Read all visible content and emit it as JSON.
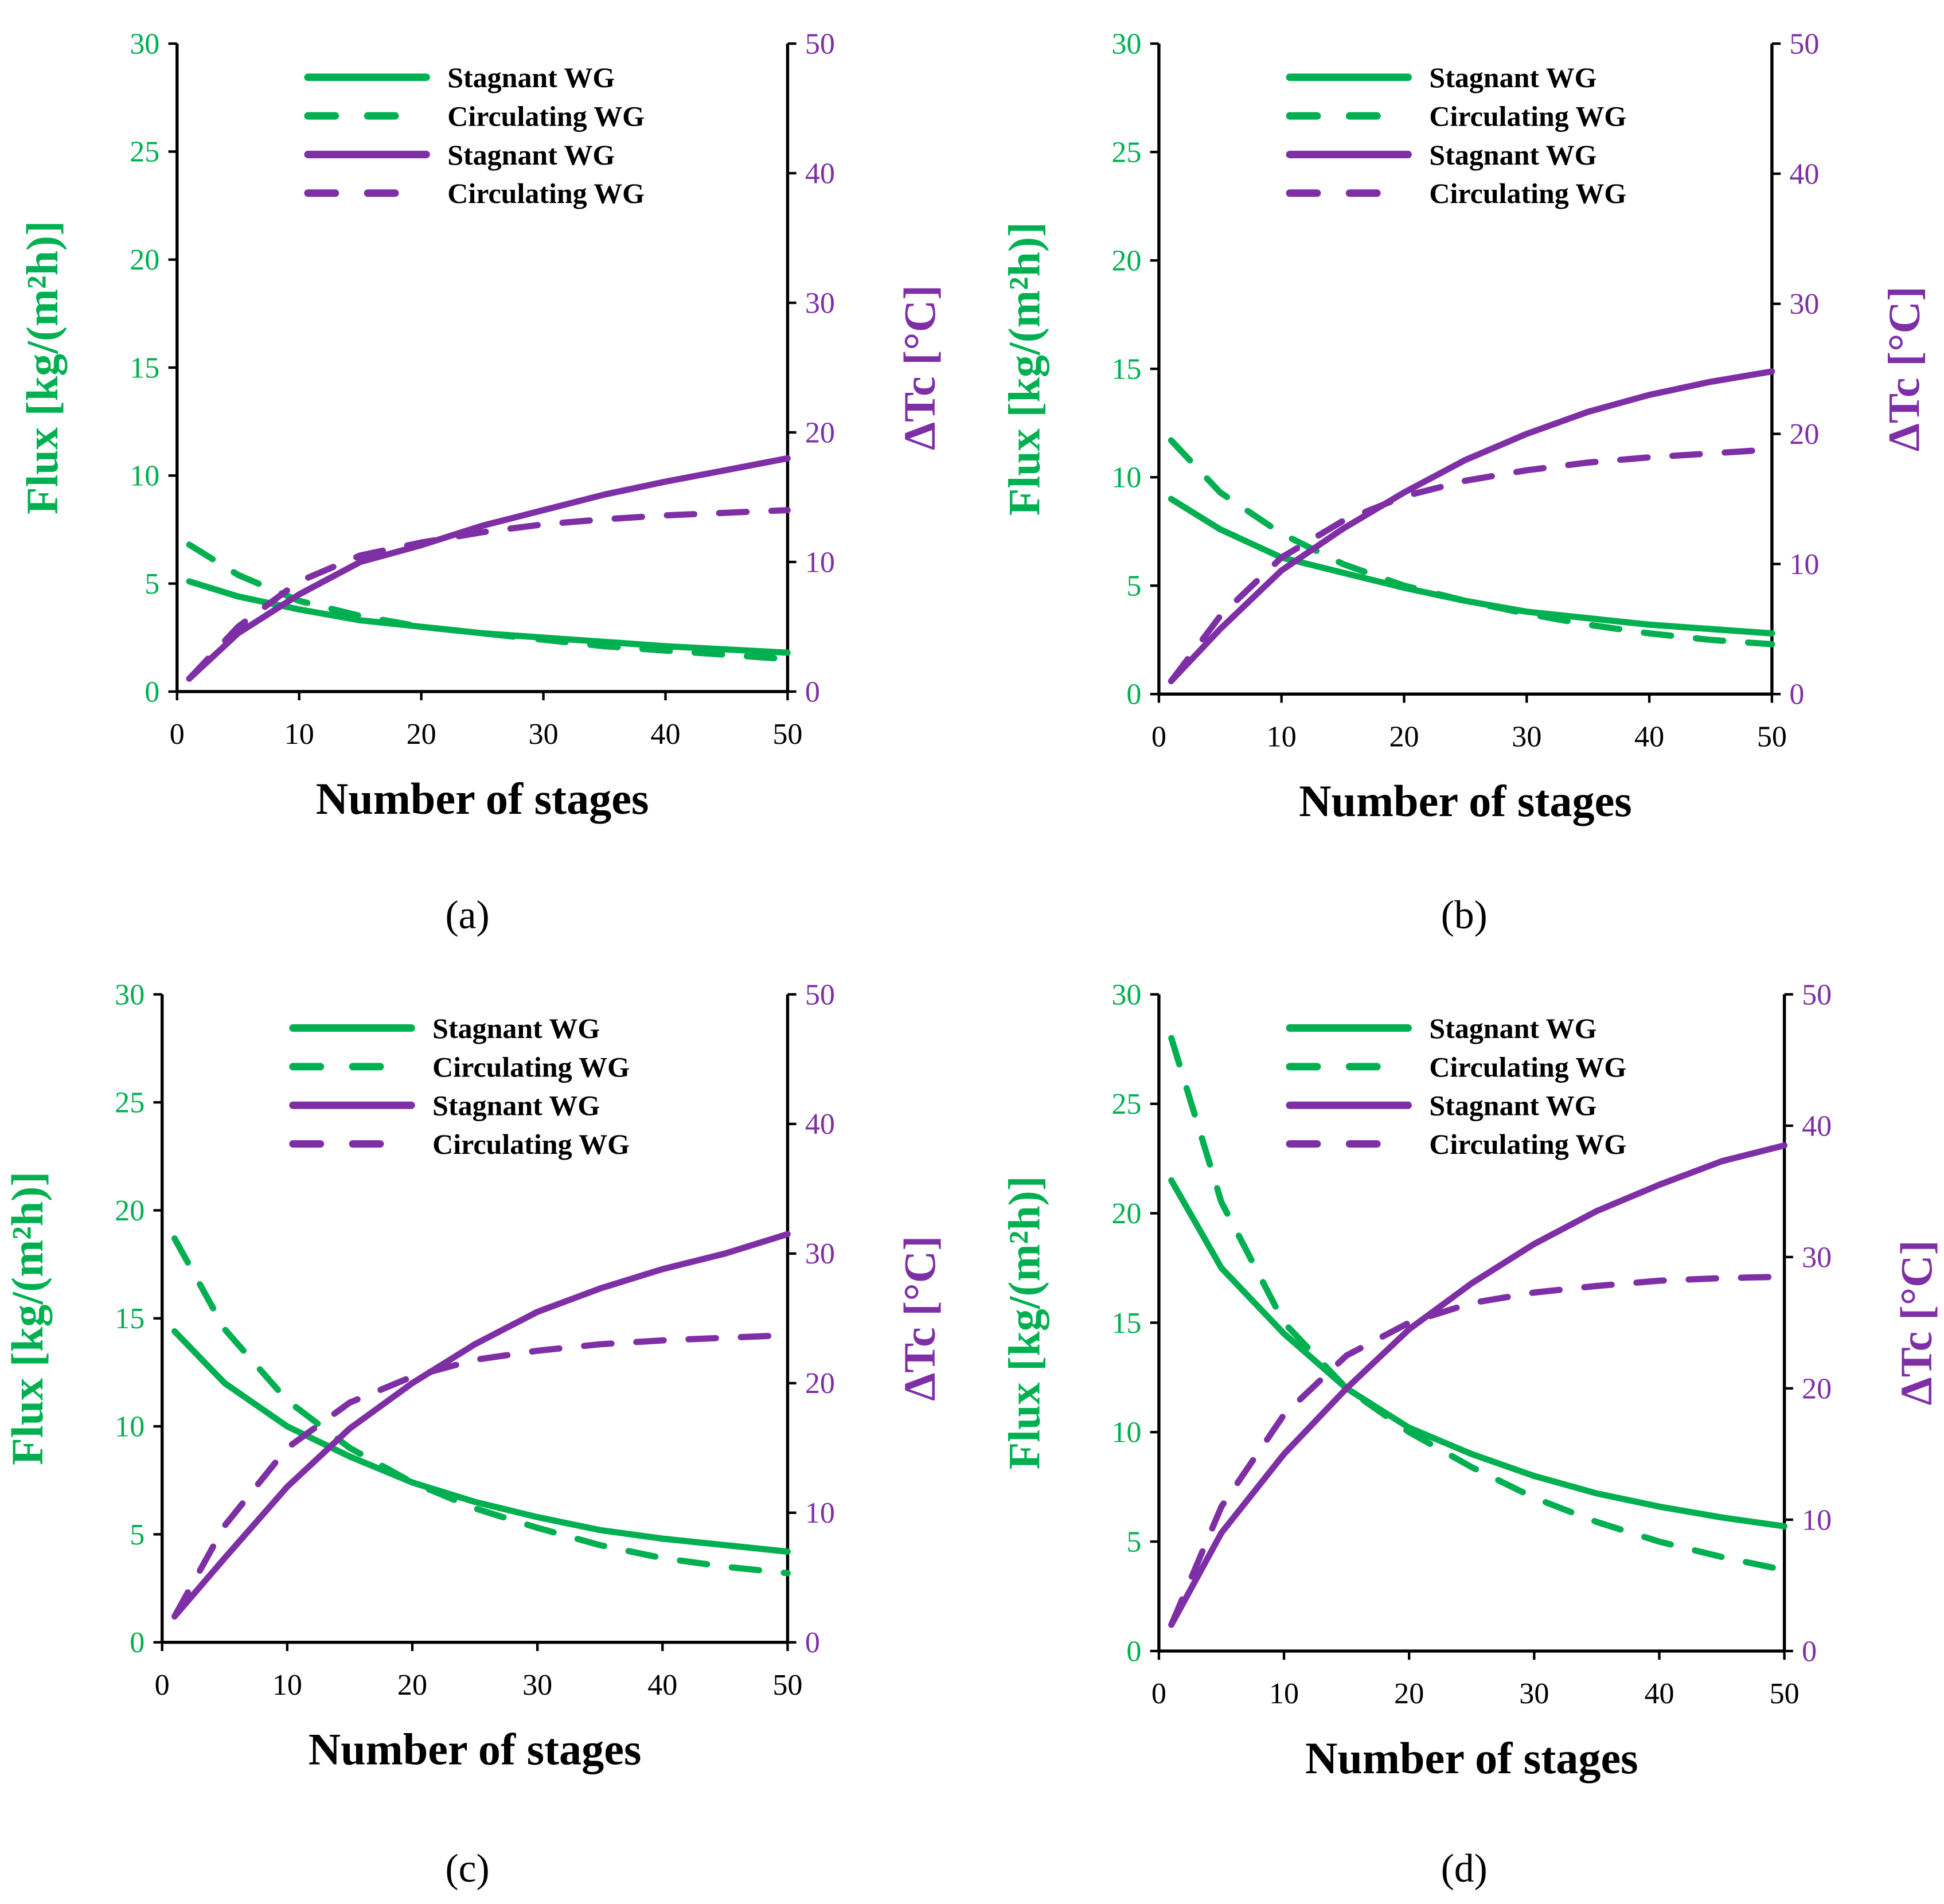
{
  "colors": {
    "flux": "#00b050",
    "dt": "#7f2fa6",
    "axis": "#000000"
  },
  "chart_data": [
    {
      "type": "line",
      "panel_label": "(a)",
      "xlabel": "Number of stages",
      "ylabel": "Flux [kg/(m²h)]",
      "y2label": "ΔTc [°C]",
      "xlim": [
        0,
        50
      ],
      "ylim": [
        0,
        30
      ],
      "y2lim": [
        0,
        50
      ],
      "xticks": [
        0,
        10,
        20,
        30,
        40,
        50
      ],
      "yticks": [
        0,
        5,
        10,
        15,
        20,
        25,
        30
      ],
      "y2ticks": [
        0,
        10,
        20,
        30,
        40,
        50
      ],
      "legend": [
        "Stagnant WG",
        "Circulating WG",
        "Stagnant WG",
        "Circulating WG"
      ],
      "legend_position": "top-center",
      "grid": false,
      "x": [
        1,
        5,
        10,
        15,
        20,
        25,
        30,
        35,
        40,
        45,
        50
      ],
      "series": [
        {
          "name": "Stagnant WG",
          "axis": "left",
          "style": "solid",
          "color": "#00b050",
          "values": [
            5.1,
            4.4,
            3.8,
            3.3,
            3.0,
            2.7,
            2.5,
            2.3,
            2.1,
            1.95,
            1.8
          ]
        },
        {
          "name": "Circulating WG",
          "axis": "left",
          "style": "dashed",
          "color": "#00b050",
          "values": [
            6.8,
            5.4,
            4.2,
            3.5,
            3.0,
            2.7,
            2.4,
            2.1,
            1.9,
            1.7,
            1.5
          ]
        },
        {
          "name": "Stagnant WG",
          "axis": "right",
          "style": "solid",
          "color": "#7f2fa6",
          "values": [
            1,
            4.5,
            7.5,
            10,
            11.3,
            12.8,
            14,
            15.2,
            16.2,
            17.1,
            18
          ]
        },
        {
          "name": "Circulating WG",
          "axis": "right",
          "style": "dashed",
          "color": "#7f2fa6",
          "values": [
            1,
            5,
            8.5,
            10.5,
            11.5,
            12.3,
            12.9,
            13.3,
            13.6,
            13.8,
            14
          ]
        }
      ]
    },
    {
      "type": "line",
      "panel_label": "(b)",
      "xlabel": "Number of stages",
      "ylabel": "Flux [kg/(m²h)]",
      "y2label": "ΔTc [°C]",
      "xlim": [
        0,
        50
      ],
      "ylim": [
        0,
        30
      ],
      "y2lim": [
        0,
        50
      ],
      "xticks": [
        0,
        10,
        20,
        30,
        40,
        50
      ],
      "yticks": [
        0,
        5,
        10,
        15,
        20,
        25,
        30
      ],
      "y2ticks": [
        0,
        10,
        20,
        30,
        40,
        50
      ],
      "legend": [
        "Stagnant WG",
        "Circulating WG",
        "Stagnant WG",
        "Circulating WG"
      ],
      "legend_position": "top-center",
      "grid": false,
      "x": [
        1,
        5,
        10,
        15,
        20,
        25,
        30,
        35,
        40,
        45,
        50
      ],
      "series": [
        {
          "name": "Stagnant WG",
          "axis": "left",
          "style": "solid",
          "color": "#00b050",
          "values": [
            9.0,
            7.6,
            6.3,
            5.6,
            4.9,
            4.3,
            3.8,
            3.5,
            3.2,
            3.0,
            2.8
          ]
        },
        {
          "name": "Circulating WG",
          "axis": "left",
          "style": "dashed",
          "color": "#00b050",
          "values": [
            11.7,
            9.3,
            7.4,
            6.0,
            5.0,
            4.3,
            3.7,
            3.2,
            2.8,
            2.5,
            2.3
          ]
        },
        {
          "name": "Stagnant WG",
          "axis": "right",
          "style": "solid",
          "color": "#7f2fa6",
          "values": [
            1,
            5,
            9.5,
            12.7,
            15.5,
            18,
            20,
            21.7,
            23,
            24,
            24.8
          ]
        },
        {
          "name": "Circulating WG",
          "axis": "right",
          "style": "dashed",
          "color": "#7f2fa6",
          "values": [
            1,
            6,
            10.5,
            13.3,
            15.2,
            16.4,
            17.2,
            17.8,
            18.2,
            18.5,
            18.8
          ]
        }
      ]
    },
    {
      "type": "line",
      "panel_label": "(c)",
      "xlabel": "Number of stages",
      "ylabel": "Flux [kg/(m²h)]",
      "y2label": "ΔTc [°C]",
      "xlim": [
        0,
        50
      ],
      "ylim": [
        0,
        30
      ],
      "y2lim": [
        0,
        50
      ],
      "xticks": [
        0,
        10,
        20,
        30,
        40,
        50
      ],
      "yticks": [
        0,
        5,
        10,
        15,
        20,
        25,
        30
      ],
      "y2ticks": [
        0,
        10,
        20,
        30,
        40,
        50
      ],
      "legend": [
        "Stagnant WG",
        "Circulating WG",
        "Stagnant WG",
        "Circulating WG"
      ],
      "legend_position": "top-center",
      "grid": false,
      "x": [
        1,
        5,
        10,
        15,
        20,
        25,
        30,
        35,
        40,
        45,
        50
      ],
      "series": [
        {
          "name": "Stagnant WG",
          "axis": "left",
          "style": "solid",
          "color": "#00b050",
          "values": [
            14.4,
            12.0,
            10.0,
            8.6,
            7.4,
            6.5,
            5.8,
            5.2,
            4.8,
            4.5,
            4.2
          ]
        },
        {
          "name": "Circulating WG",
          "axis": "left",
          "style": "dashed",
          "color": "#00b050",
          "values": [
            18.7,
            14.5,
            11.2,
            9.0,
            7.4,
            6.2,
            5.3,
            4.5,
            3.9,
            3.5,
            3.2
          ]
        },
        {
          "name": "Stagnant WG",
          "axis": "right",
          "style": "solid",
          "color": "#7f2fa6",
          "values": [
            2,
            6.5,
            12,
            16.5,
            20,
            23,
            25.5,
            27.3,
            28.8,
            30,
            31.5
          ]
        },
        {
          "name": "Circulating WG",
          "axis": "right",
          "style": "dashed",
          "color": "#7f2fa6",
          "values": [
            2,
            9,
            15,
            18.5,
            20.5,
            21.8,
            22.5,
            23,
            23.3,
            23.5,
            23.7
          ]
        }
      ]
    },
    {
      "type": "line",
      "panel_label": "(d)",
      "xlabel": "Number of stages",
      "ylabel": "Flux [kg/(m²h)]",
      "y2label": "ΔTc [°C]",
      "xlim": [
        0,
        50
      ],
      "ylim": [
        0,
        30
      ],
      "y2lim": [
        0,
        50
      ],
      "xticks": [
        0,
        10,
        20,
        30,
        40,
        50
      ],
      "yticks": [
        0,
        5,
        10,
        15,
        20,
        25,
        30
      ],
      "y2ticks": [
        0,
        10,
        20,
        30,
        40,
        50
      ],
      "legend": [
        "Stagnant WG",
        "Circulating WG",
        "Stagnant WG",
        "Circulating WG"
      ],
      "legend_position": "top-center",
      "grid": false,
      "x": [
        1,
        5,
        10,
        15,
        20,
        25,
        30,
        35,
        40,
        45,
        50
      ],
      "series": [
        {
          "name": "Stagnant WG",
          "axis": "left",
          "style": "solid",
          "color": "#00b050",
          "values": [
            21.5,
            17.5,
            14.5,
            12.0,
            10.2,
            9.0,
            8.0,
            7.2,
            6.6,
            6.1,
            5.7
          ]
        },
        {
          "name": "Circulating WG",
          "axis": "left",
          "style": "dashed",
          "color": "#00b050",
          "values": [
            28.0,
            20.5,
            15.0,
            12.0,
            10.0,
            8.4,
            7.0,
            5.9,
            5.0,
            4.3,
            3.7
          ]
        },
        {
          "name": "Stagnant WG",
          "axis": "right",
          "style": "solid",
          "color": "#7f2fa6",
          "values": [
            2,
            9,
            15,
            20,
            24.5,
            28,
            31,
            33.5,
            35.5,
            37.3,
            38.5
          ]
        },
        {
          "name": "Circulating WG",
          "axis": "right",
          "style": "dashed",
          "color": "#7f2fa6",
          "values": [
            2,
            11,
            18,
            22.5,
            25,
            26.5,
            27.3,
            27.8,
            28.2,
            28.4,
            28.5
          ]
        }
      ]
    }
  ]
}
